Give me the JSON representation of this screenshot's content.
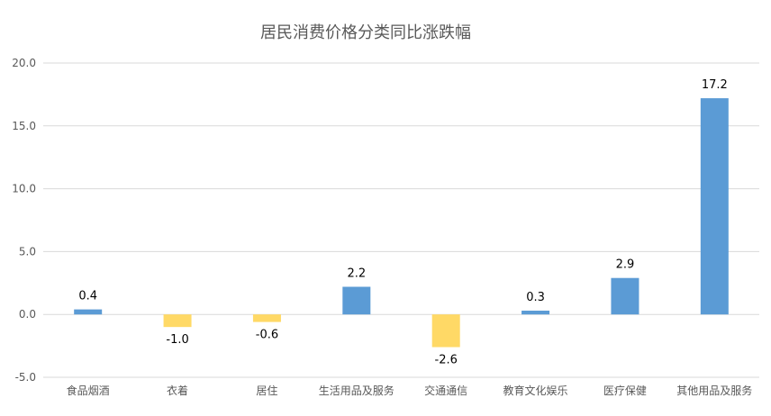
{
  "chart_data": {
    "type": "bar",
    "title": "居民消费价格分类同比涨跌幅",
    "xlabel": "",
    "ylabel": "",
    "categories": [
      "食品烟酒",
      "衣着",
      "居住",
      "生活用品及服务",
      "交通通信",
      "教育文化娱乐",
      "医疗保健",
      "其他用品及服务"
    ],
    "values": [
      0.4,
      -1.0,
      -0.6,
      2.2,
      -2.6,
      0.3,
      2.9,
      17.2
    ],
    "value_labels": [
      "0.4",
      "-1.0",
      "-0.6",
      "2.2",
      "-2.6",
      "0.3",
      "2.9",
      "17.2"
    ],
    "ylim": [
      -5.0,
      20.0
    ],
    "yticks": [
      "20.0",
      "15.0",
      "10.0",
      "5.0",
      "0.0",
      "-5.0"
    ],
    "grid": true,
    "legend": "none",
    "colors": {
      "positive": "#5b9bd5",
      "negative": "#ffd966",
      "grid": "#d9d9d9",
      "text": "#595959"
    }
  }
}
